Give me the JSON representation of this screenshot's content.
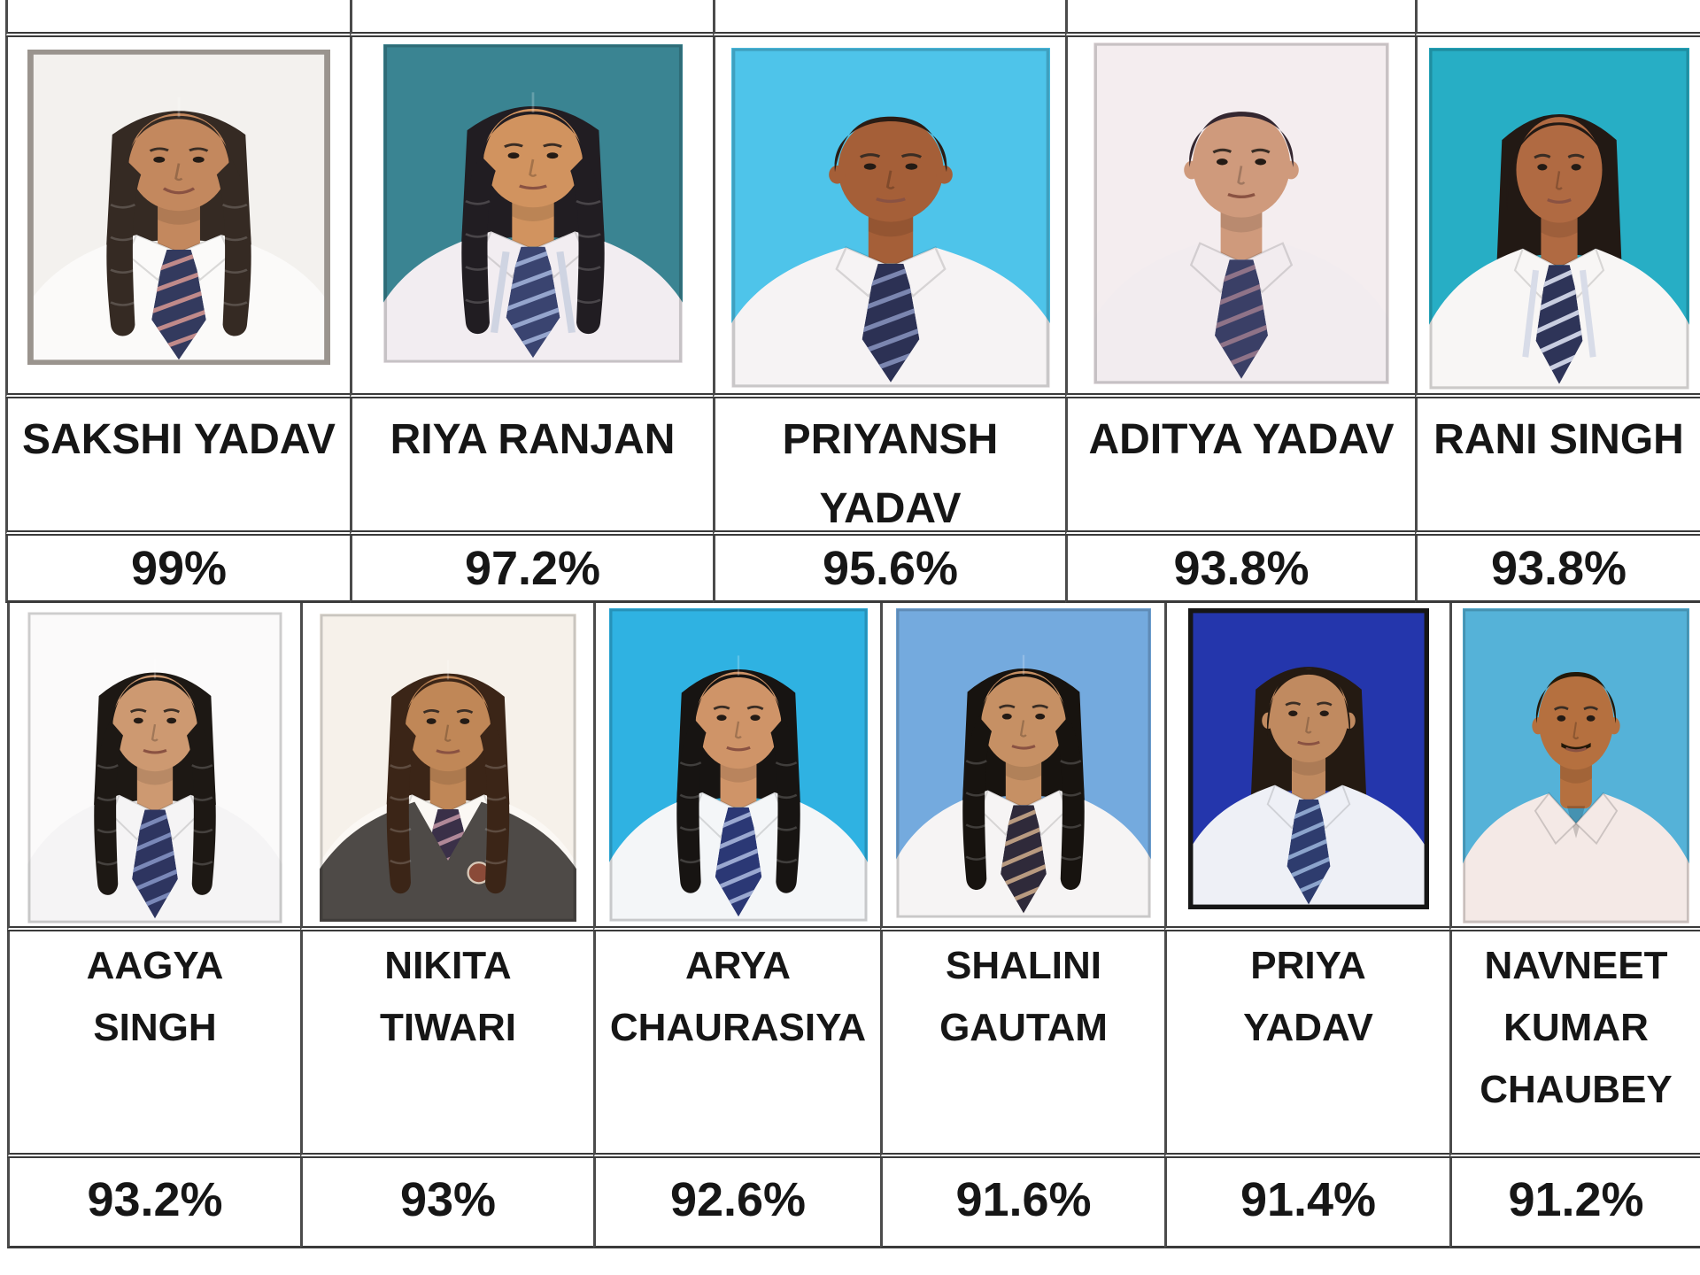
{
  "page": {
    "background": "#ffffff",
    "border_color": "#3a3a3a"
  },
  "table": {
    "row1": {
      "students": [
        {
          "name": "SAKSHI YADAV",
          "name_lines": "SAKSHI YADAV",
          "percent": "99%",
          "photo": {
            "bg": "#f3f1ee",
            "skin": "#c3885e",
            "hair": "#352a23",
            "shirt": "#fbfaf9",
            "tie": "#333a5e",
            "tie_stripe": "#c08a8a",
            "hairstyle": "pigtails",
            "smile": true,
            "frame": "#9a948e"
          }
        },
        {
          "name": "RIYA RANJAN",
          "name_lines": "RIYA RANJAN",
          "percent": "97.2%",
          "photo": {
            "bg": "#3a8492",
            "skin": "#d1935f",
            "hair": "#211d22",
            "shirt": "#f2edf1",
            "tie": "#3a4470",
            "tie_stripe": "#95a5cd",
            "hairstyle": "braids",
            "lanyard": "#cfd4e2"
          }
        },
        {
          "name": "PRIYANSH YADAV",
          "name_lines": "PRIYANSH\nYADAV",
          "percent": "95.6%",
          "photo": {
            "bg": "#4ec4ea",
            "skin": "#a55f38",
            "hair": "#2a1c14",
            "shirt": "#f6f3f4",
            "tie": "#2c3154",
            "tie_stripe": "#7b86b0",
            "hairstyle": "short"
          }
        },
        {
          "name": "ADITYA YADAV",
          "name_lines": "ADITYA YADAV",
          "percent": "93.8%",
          "photo": {
            "bg": "#f4edef",
            "skin": "#cf9a7c",
            "hair": "#342730",
            "shirt": "#f2ecef",
            "tie": "#3a3f66",
            "tie_stripe": "#8f7388",
            "hairstyle": "short"
          }
        },
        {
          "name": "RANI SINGH",
          "name_lines": "RANI SINGH",
          "percent": "93.8%",
          "photo": {
            "bg": "#27aec5",
            "skin": "#b06a42",
            "hair": "#221914",
            "shirt": "#f8f6f5",
            "tie": "#2e3458",
            "tie_stripe": "#c8cde0",
            "hairstyle": "bob",
            "lanyard": "#d8dce8"
          }
        }
      ]
    },
    "row2": {
      "students": [
        {
          "name": "AAGYA SINGH",
          "name_lines": "AAGYA\nSINGH",
          "percent": "93.2%",
          "photo": {
            "bg": "#fbfafa",
            "skin": "#cd9971",
            "hair": "#1d1814",
            "shirt": "#f5f4f5",
            "tie": "#2e3560",
            "tie_stripe": "#7a88b8",
            "hairstyle": "braids"
          }
        },
        {
          "name": "NIKITA TIWARI",
          "name_lines": "NIKITA\nTIWARI",
          "percent": "93%",
          "photo": {
            "bg": "#f6f1ea",
            "skin": "#c08757",
            "hair": "#3b2517",
            "shirt": "#fbf8f4",
            "tie": "#3a3048",
            "tie_stripe": "#b08898",
            "hairstyle": "braids",
            "vest": "#4e4a47"
          }
        },
        {
          "name": "ARYA CHAURASIYA",
          "name_lines": "ARYA\nCHAURASIYA",
          "percent": "92.6%",
          "photo": {
            "bg": "#2fb2e2",
            "skin": "#cf9468",
            "hair": "#171412",
            "shirt": "#f4f6f8",
            "tie": "#2b3875",
            "tie_stripe": "#9aa8d0",
            "hairstyle": "pigtails"
          }
        },
        {
          "name": "SHALINI GAUTAM",
          "name_lines": "SHALINI\nGAUTAM",
          "percent": "91.6%",
          "photo": {
            "bg": "#74aade",
            "skin": "#c69064",
            "hair": "#17130f",
            "shirt": "#f6f4f4",
            "tie": "#2f2a3a",
            "tie_stripe": "#b89a80",
            "hairstyle": "braids"
          }
        },
        {
          "name": "PRIYA YADAV",
          "name_lines": "PRIYA\nYADAV",
          "percent": "91.4%",
          "photo": {
            "bg": "#2436ac",
            "skin": "#c08a60",
            "hair": "#241a12",
            "shirt": "#eef0f6",
            "tie": "#2e3c6e",
            "tie_stripe": "#8ca4cc",
            "hairstyle": "back",
            "frame": "#161616"
          }
        },
        {
          "name": "NAVNEET KUMAR CHAUBEY",
          "name_lines": "NAVNEET\nKUMAR\nCHAUBEY",
          "percent": "91.2%",
          "photo": {
            "bg": "#55b2d8",
            "skin": "#b5703f",
            "hair": "#221808",
            "shirt": "#f4e9e6",
            "hairstyle": "short",
            "mustache": true,
            "open": true
          }
        }
      ]
    }
  }
}
